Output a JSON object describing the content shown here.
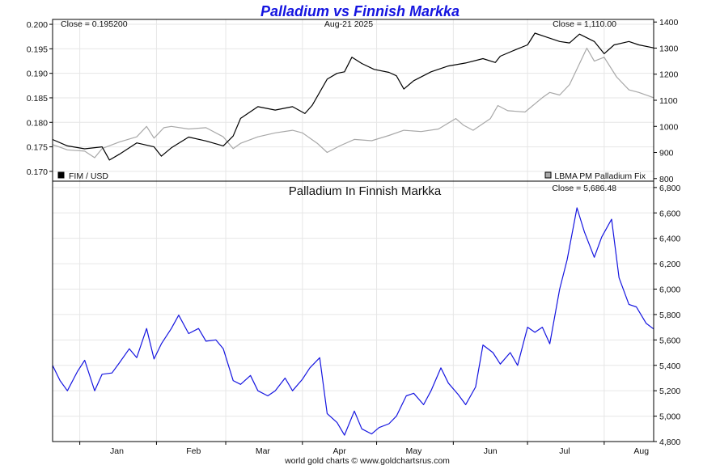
{
  "colors": {
    "title": "#1515e0",
    "fim_usd": "#000000",
    "palladium_usd": "#a8a8a8",
    "palladium_fim": "#1515e0",
    "grid": "#e6e6e6"
  },
  "chart_data": [
    {
      "type": "line",
      "title": "Palladium vs Finnish Markka",
      "date_label": "Aug-21  2025",
      "left_close": "Close = 0.195200",
      "right_close": "Close = 1,110.00",
      "x": {
        "labels": [
          "Jan",
          "Feb",
          "Mar",
          "Apr",
          "May",
          "Jun",
          "Jul",
          "Aug"
        ],
        "range": [
          "2024-12-21",
          "2025-08-21"
        ]
      },
      "y_left": {
        "range": [
          0.168,
          0.201
        ],
        "ticks": [
          "0.170",
          "0.175",
          "0.180",
          "0.185",
          "0.190",
          "0.195",
          "0.200"
        ]
      },
      "y_right": {
        "range": [
          790,
          1410
        ],
        "ticks": [
          "800",
          "900",
          "1000",
          "1100",
          "1200",
          "1300",
          "1400"
        ]
      },
      "grid": true,
      "legend": "bottom",
      "series": [
        {
          "name": "FIM / USD",
          "axis": "left",
          "color": "#000000",
          "points": [
            [
              "2024-12-21",
              0.1765
            ],
            [
              "2024-12-27",
              0.1752
            ],
            [
              "2025-01-03",
              0.1746
            ],
            [
              "2025-01-10",
              0.175
            ],
            [
              "2025-01-13",
              0.1723
            ],
            [
              "2025-01-17",
              0.1735
            ],
            [
              "2025-01-24",
              0.1758
            ],
            [
              "2025-01-31",
              0.175
            ],
            [
              "2025-02-03",
              0.1731
            ],
            [
              "2025-02-07",
              0.1748
            ],
            [
              "2025-02-14",
              0.177
            ],
            [
              "2025-02-21",
              0.1762
            ],
            [
              "2025-02-28",
              0.1752
            ],
            [
              "2025-03-04",
              0.1772
            ],
            [
              "2025-03-07",
              0.1808
            ],
            [
              "2025-03-14",
              0.1832
            ],
            [
              "2025-03-21",
              0.1825
            ],
            [
              "2025-03-28",
              0.1832
            ],
            [
              "2025-04-02",
              0.1818
            ],
            [
              "2025-04-05",
              0.1835
            ],
            [
              "2025-04-11",
              0.1888
            ],
            [
              "2025-04-15",
              0.19
            ],
            [
              "2025-04-18",
              0.1903
            ],
            [
              "2025-04-21",
              0.1933
            ],
            [
              "2025-04-25",
              0.192
            ],
            [
              "2025-04-30",
              0.1908
            ],
            [
              "2025-05-06",
              0.1902
            ],
            [
              "2025-05-09",
              0.1895
            ],
            [
              "2025-05-12",
              0.1868
            ],
            [
              "2025-05-16",
              0.1885
            ],
            [
              "2025-05-23",
              0.1903
            ],
            [
              "2025-05-30",
              0.1915
            ],
            [
              "2025-06-06",
              0.1921
            ],
            [
              "2025-06-13",
              0.193
            ],
            [
              "2025-06-18",
              0.1922
            ],
            [
              "2025-06-20",
              0.1935
            ],
            [
              "2025-06-27",
              0.195
            ],
            [
              "2025-07-01",
              0.1958
            ],
            [
              "2025-07-04",
              0.1982
            ],
            [
              "2025-07-08",
              0.1975
            ],
            [
              "2025-07-14",
              0.1965
            ],
            [
              "2025-07-18",
              0.1962
            ],
            [
              "2025-07-22",
              0.198
            ],
            [
              "2025-07-28",
              0.1965
            ],
            [
              "2025-08-01",
              0.194
            ],
            [
              "2025-08-05",
              0.1958
            ],
            [
              "2025-08-11",
              0.1965
            ],
            [
              "2025-08-15",
              0.1958
            ],
            [
              "2025-08-21",
              0.1952
            ]
          ]
        },
        {
          "name": "LBMA PM Palladium Fix",
          "axis": "right",
          "color": "#a8a8a8",
          "points": [
            [
              "2024-12-21",
              930
            ],
            [
              "2024-12-27",
              910
            ],
            [
              "2025-01-03",
              905
            ],
            [
              "2025-01-07",
              880
            ],
            [
              "2025-01-10",
              915
            ],
            [
              "2025-01-17",
              940
            ],
            [
              "2025-01-24",
              960
            ],
            [
              "2025-01-28",
              1000
            ],
            [
              "2025-01-31",
              955
            ],
            [
              "2025-02-04",
              995
            ],
            [
              "2025-02-07",
              1000
            ],
            [
              "2025-02-14",
              990
            ],
            [
              "2025-02-21",
              995
            ],
            [
              "2025-02-28",
              960
            ],
            [
              "2025-03-04",
              915
            ],
            [
              "2025-03-07",
              935
            ],
            [
              "2025-03-14",
              960
            ],
            [
              "2025-03-21",
              975
            ],
            [
              "2025-03-28",
              985
            ],
            [
              "2025-04-01",
              975
            ],
            [
              "2025-04-07",
              935
            ],
            [
              "2025-04-11",
              900
            ],
            [
              "2025-04-16",
              925
            ],
            [
              "2025-04-22",
              950
            ],
            [
              "2025-04-29",
              945
            ],
            [
              "2025-05-06",
              965
            ],
            [
              "2025-05-12",
              985
            ],
            [
              "2025-05-19",
              980
            ],
            [
              "2025-05-26",
              990
            ],
            [
              "2025-06-02",
              1030
            ],
            [
              "2025-06-05",
              1005
            ],
            [
              "2025-06-09",
              985
            ],
            [
              "2025-06-16",
              1030
            ],
            [
              "2025-06-19",
              1080
            ],
            [
              "2025-06-23",
              1060
            ],
            [
              "2025-06-30",
              1055
            ],
            [
              "2025-07-07",
              1110
            ],
            [
              "2025-07-10",
              1130
            ],
            [
              "2025-07-14",
              1120
            ],
            [
              "2025-07-18",
              1160
            ],
            [
              "2025-07-22",
              1240
            ],
            [
              "2025-07-25",
              1300
            ],
            [
              "2025-07-28",
              1250
            ],
            [
              "2025-08-01",
              1265
            ],
            [
              "2025-08-06",
              1190
            ],
            [
              "2025-08-11",
              1140
            ],
            [
              "2025-08-15",
              1130
            ],
            [
              "2025-08-21",
              1110
            ]
          ]
        }
      ]
    },
    {
      "type": "line",
      "title": "Palladium In Finnish Markka",
      "close_label": "Close = 5,686.48",
      "x": {
        "labels": [
          "Jan",
          "Feb",
          "Mar",
          "Apr",
          "May",
          "Jun",
          "Jul",
          "Aug"
        ],
        "range": [
          "2024-12-21",
          "2025-08-21"
        ]
      },
      "y": {
        "range": [
          4800,
          6850
        ],
        "ticks": [
          "4,800",
          "5,000",
          "5,200",
          "5,400",
          "5,600",
          "5,800",
          "6,000",
          "6,200",
          "6,400",
          "6,600",
          "6,800"
        ]
      },
      "grid": true,
      "series": [
        {
          "name": "",
          "color": "#1515e0",
          "points": [
            [
              "2024-12-21",
              5400
            ],
            [
              "2024-12-24",
              5280
            ],
            [
              "2024-12-27",
              5200
            ],
            [
              "2024-12-31",
              5350
            ],
            [
              "2025-01-03",
              5440
            ],
            [
              "2025-01-07",
              5200
            ],
            [
              "2025-01-10",
              5330
            ],
            [
              "2025-01-14",
              5340
            ],
            [
              "2025-01-17",
              5420
            ],
            [
              "2025-01-21",
              5530
            ],
            [
              "2025-01-24",
              5460
            ],
            [
              "2025-01-28",
              5690
            ],
            [
              "2025-01-31",
              5450
            ],
            [
              "2025-02-03",
              5570
            ],
            [
              "2025-02-07",
              5690
            ],
            [
              "2025-02-10",
              5795
            ],
            [
              "2025-02-14",
              5650
            ],
            [
              "2025-02-18",
              5690
            ],
            [
              "2025-02-21",
              5590
            ],
            [
              "2025-02-25",
              5600
            ],
            [
              "2025-02-28",
              5530
            ],
            [
              "2025-03-04",
              5280
            ],
            [
              "2025-03-07",
              5250
            ],
            [
              "2025-03-11",
              5320
            ],
            [
              "2025-03-14",
              5200
            ],
            [
              "2025-03-18",
              5160
            ],
            [
              "2025-03-21",
              5200
            ],
            [
              "2025-03-25",
              5300
            ],
            [
              "2025-03-28",
              5200
            ],
            [
              "2025-04-01",
              5290
            ],
            [
              "2025-04-04",
              5380
            ],
            [
              "2025-04-08",
              5460
            ],
            [
              "2025-04-11",
              5020
            ],
            [
              "2025-04-15",
              4950
            ],
            [
              "2025-04-18",
              4850
            ],
            [
              "2025-04-22",
              5040
            ],
            [
              "2025-04-25",
              4900
            ],
            [
              "2025-04-29",
              4860
            ],
            [
              "2025-05-02",
              4910
            ],
            [
              "2025-05-06",
              4940
            ],
            [
              "2025-05-09",
              5000
            ],
            [
              "2025-05-13",
              5160
            ],
            [
              "2025-05-16",
              5180
            ],
            [
              "2025-05-20",
              5090
            ],
            [
              "2025-05-23",
              5200
            ],
            [
              "2025-05-27",
              5380
            ],
            [
              "2025-05-30",
              5260
            ],
            [
              "2025-06-03",
              5170
            ],
            [
              "2025-06-06",
              5090
            ],
            [
              "2025-06-10",
              5230
            ],
            [
              "2025-06-13",
              5560
            ],
            [
              "2025-06-17",
              5500
            ],
            [
              "2025-06-20",
              5410
            ],
            [
              "2025-06-24",
              5500
            ],
            [
              "2025-06-27",
              5400
            ],
            [
              "2025-07-01",
              5700
            ],
            [
              "2025-07-04",
              5660
            ],
            [
              "2025-07-07",
              5700
            ],
            [
              "2025-07-10",
              5570
            ],
            [
              "2025-07-14",
              6000
            ],
            [
              "2025-07-17",
              6230
            ],
            [
              "2025-07-21",
              6640
            ],
            [
              "2025-07-24",
              6450
            ],
            [
              "2025-07-28",
              6250
            ],
            [
              "2025-07-31",
              6410
            ],
            [
              "2025-08-04",
              6550
            ],
            [
              "2025-08-07",
              6090
            ],
            [
              "2025-08-11",
              5880
            ],
            [
              "2025-08-14",
              5860
            ],
            [
              "2025-08-18",
              5730
            ],
            [
              "2025-08-21",
              5686
            ]
          ]
        }
      ]
    }
  ],
  "footer": "world gold charts © www.goldchartsrus.com"
}
